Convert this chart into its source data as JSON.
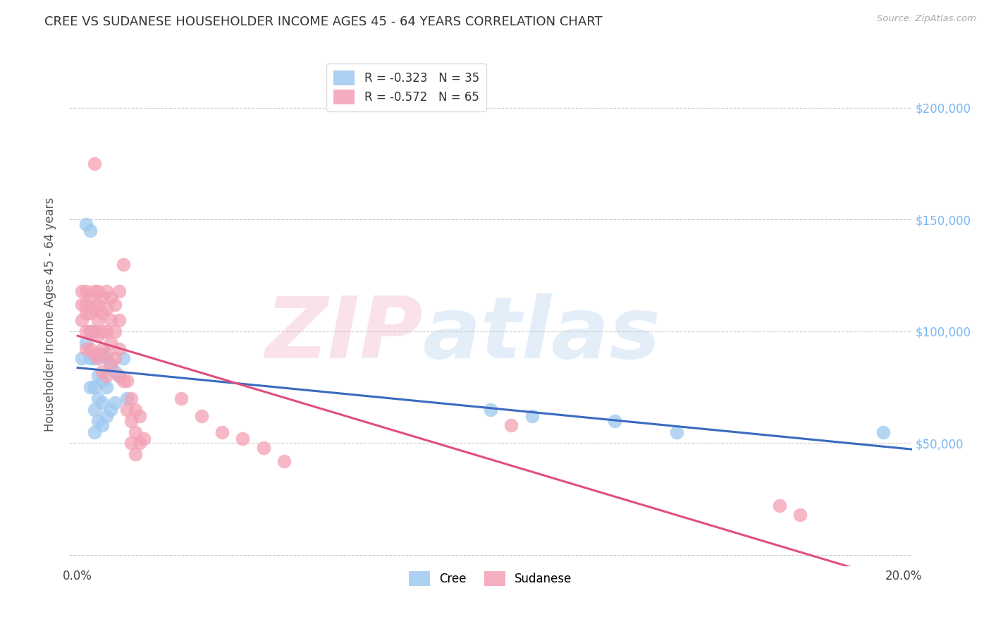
{
  "title": "CREE VS SUDANESE HOUSEHOLDER INCOME AGES 45 - 64 YEARS CORRELATION CHART",
  "source": "Source: ZipAtlas.com",
  "ylabel": "Householder Income Ages 45 - 64 years",
  "watermark_zip": "ZIP",
  "watermark_atlas": "atlas",
  "legend": [
    {
      "label": "R = -0.323   N = 35",
      "color": "#a8c4e0"
    },
    {
      "label": "R = -0.572   N = 65",
      "color": "#f4a0b0"
    }
  ],
  "legend_labels": [
    "Cree",
    "Sudanese"
  ],
  "xlim": [
    -0.002,
    0.202
  ],
  "ylim": [
    -5000,
    220000
  ],
  "grid_color": "#cccccc",
  "background_color": "#ffffff",
  "cree_color": "#9ec8f0",
  "sudanese_color": "#f4a0b5",
  "cree_line_color": "#3a6bbf",
  "sudanese_line_color": "#e0507a",
  "title_color": "#333333",
  "axis_label_color": "#555555",
  "right_axis_color": "#7ab8f5",
  "cree_x": [
    0.001,
    0.002,
    0.002,
    0.003,
    0.003,
    0.003,
    0.003,
    0.004,
    0.004,
    0.004,
    0.004,
    0.004,
    0.005,
    0.005,
    0.005,
    0.005,
    0.006,
    0.006,
    0.006,
    0.006,
    0.007,
    0.007,
    0.007,
    0.008,
    0.008,
    0.009,
    0.009,
    0.01,
    0.011,
    0.012,
    0.1,
    0.11,
    0.13,
    0.145,
    0.195
  ],
  "cree_y": [
    88000,
    148000,
    95000,
    145000,
    100000,
    88000,
    75000,
    100000,
    88000,
    75000,
    65000,
    55000,
    90000,
    80000,
    70000,
    60000,
    90000,
    78000,
    68000,
    58000,
    88000,
    75000,
    62000,
    85000,
    65000,
    82000,
    68000,
    80000,
    88000,
    70000,
    65000,
    62000,
    60000,
    55000,
    55000
  ],
  "sudanese_x": [
    0.001,
    0.001,
    0.001,
    0.002,
    0.002,
    0.002,
    0.002,
    0.002,
    0.003,
    0.003,
    0.003,
    0.003,
    0.004,
    0.004,
    0.004,
    0.004,
    0.004,
    0.005,
    0.005,
    0.005,
    0.005,
    0.005,
    0.006,
    0.006,
    0.006,
    0.006,
    0.006,
    0.007,
    0.007,
    0.007,
    0.007,
    0.007,
    0.008,
    0.008,
    0.008,
    0.008,
    0.009,
    0.009,
    0.009,
    0.01,
    0.01,
    0.01,
    0.01,
    0.011,
    0.011,
    0.012,
    0.012,
    0.013,
    0.013,
    0.013,
    0.014,
    0.014,
    0.014,
    0.015,
    0.015,
    0.016,
    0.025,
    0.03,
    0.035,
    0.04,
    0.045,
    0.05,
    0.105,
    0.17,
    0.175
  ],
  "sudanese_y": [
    118000,
    112000,
    105000,
    118000,
    112000,
    108000,
    100000,
    92000,
    115000,
    108000,
    100000,
    92000,
    175000,
    118000,
    110000,
    100000,
    90000,
    118000,
    112000,
    105000,
    98000,
    88000,
    115000,
    108000,
    100000,
    92000,
    82000,
    118000,
    110000,
    100000,
    90000,
    80000,
    115000,
    105000,
    95000,
    85000,
    112000,
    100000,
    88000,
    118000,
    105000,
    92000,
    80000,
    130000,
    78000,
    78000,
    65000,
    70000,
    60000,
    50000,
    65000,
    55000,
    45000,
    62000,
    50000,
    52000,
    70000,
    62000,
    55000,
    52000,
    48000,
    42000,
    58000,
    22000,
    18000
  ]
}
